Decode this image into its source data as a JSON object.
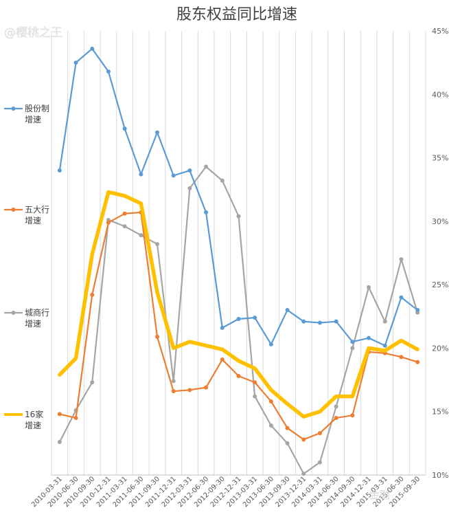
{
  "watermark": "@樱桃之王",
  "watermark_bottom": "金融",
  "chart_data": {
    "type": "line",
    "title": "股东权益同比增速",
    "xlabel": "",
    "ylabel": "",
    "ylim": [
      10,
      45
    ],
    "yticks": [
      "10%",
      "15%",
      "20%",
      "25%",
      "30%",
      "35%",
      "40%",
      "45%"
    ],
    "grid": "vertical",
    "legend_position": "left",
    "x": [
      "2010-03-31",
      "2010-06-30",
      "2010-09-30",
      "2010-12-31",
      "2011-03-31",
      "2011-06-30",
      "2011-09-30",
      "2011-12-31",
      "2012-03-31",
      "2012-06-30",
      "2012-09-30",
      "2012-12-31",
      "2013-03-31",
      "2013-06-30",
      "2013-09-30",
      "2013-12-31",
      "2014-03-31",
      "2014-06-30",
      "2014-09-30",
      "2014-12-31",
      "2015-03-31",
      "2015-06-30",
      "2015-09-30"
    ],
    "xtick_labels": [
      "2010-03-31",
      "2010-06-30",
      "2010-09-30",
      "2010-12-31",
      "2011-03-31",
      "2011-06-30",
      "2011-09-30",
      "2011-12-31",
      "2012-03-31",
      "2012-06-30",
      "2012-09-30",
      "2012-12-31",
      "2013-03-31",
      "2013-06-30",
      "2013-09-30",
      "2013-12-31",
      "2014-03-31",
      "2014-06-30",
      "2014-09-30",
      "2014-12-31",
      "2015-03-31",
      "2015-06-30",
      "2015-09-30"
    ],
    "series": [
      {
        "name": "股份制\n增速",
        "color": "#5b9bd5",
        "width": 2.2,
        "marker": true,
        "values": [
          34.0,
          42.5,
          43.6,
          41.8,
          37.3,
          33.7,
          37.0,
          33.6,
          34.0,
          30.7,
          21.6,
          22.3,
          22.4,
          20.3,
          23.0,
          22.1,
          22.0,
          22.1,
          20.5,
          20.8,
          20.2,
          24.0,
          23.0
        ]
      },
      {
        "name": "五大行\n增速",
        "color": "#ed7d31",
        "width": 2.2,
        "marker": true,
        "values": [
          14.8,
          14.5,
          24.2,
          29.9,
          30.6,
          30.7,
          20.9,
          16.6,
          16.7,
          16.9,
          19.1,
          17.8,
          17.3,
          15.8,
          13.7,
          12.8,
          13.3,
          14.5,
          14.7,
          19.7,
          19.6,
          19.3,
          18.9
        ]
      },
      {
        "name": "城商行\n增速",
        "color": "#a5a5a5",
        "width": 2.2,
        "marker": true,
        "values": [
          12.6,
          15.1,
          17.3,
          30.1,
          29.6,
          28.9,
          28.2,
          17.4,
          32.6,
          34.3,
          33.2,
          30.4,
          16.2,
          13.9,
          12.5,
          10.1,
          11.0,
          15.4,
          20.0,
          24.8,
          22.1,
          27.0,
          22.8
        ]
      },
      {
        "name": "16家\n增速",
        "color": "#ffc000",
        "width": 5.5,
        "marker": false,
        "values": [
          17.9,
          19.2,
          27.4,
          32.3,
          32.0,
          31.4,
          24.4,
          20.0,
          20.5,
          20.2,
          19.9,
          19.0,
          18.4,
          16.7,
          15.6,
          14.6,
          15.0,
          16.2,
          16.2,
          20.0,
          19.8,
          20.6,
          19.9
        ]
      }
    ]
  }
}
